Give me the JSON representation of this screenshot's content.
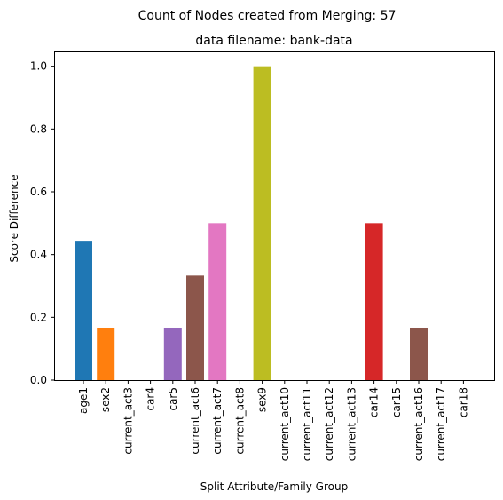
{
  "figure": {
    "suptitle": "Count of Nodes created from Merging: 57"
  },
  "chart_data": {
    "type": "bar",
    "title": "data filename: bank-data",
    "xlabel": "Split Attribute/Family Group",
    "ylabel": "Score Difference",
    "ylim": [
      0,
      1.05
    ],
    "yticks": [
      "0.0",
      "0.2",
      "0.4",
      "0.6",
      "0.8",
      "1.0"
    ],
    "grid": false,
    "categories": [
      "age1",
      "sex2",
      "current_act3",
      "car4",
      "car5",
      "current_act6",
      "current_act7",
      "current_act8",
      "sex9",
      "current_act10",
      "current_act11",
      "current_act12",
      "current_act13",
      "car14",
      "car15",
      "current_act16",
      "current_act17",
      "car18"
    ],
    "values": [
      0.444,
      0.167,
      0,
      0,
      0.167,
      0.333,
      0.5,
      0,
      1.0,
      0,
      0,
      0,
      0,
      0.5,
      0,
      0.167,
      0,
      0
    ],
    "colors": [
      "#1f77b4",
      "#ff7f0e",
      "#2ca02c",
      "#d62728",
      "#9467bd",
      "#8c564b",
      "#e377c2",
      "#7f7f7f",
      "#bcbd22",
      "#17becf",
      "#1f77b4",
      "#ff7f0e",
      "#2ca02c",
      "#d62728",
      "#9467bd",
      "#8c564b",
      "#e377c2",
      "#7f7f7f"
    ]
  }
}
